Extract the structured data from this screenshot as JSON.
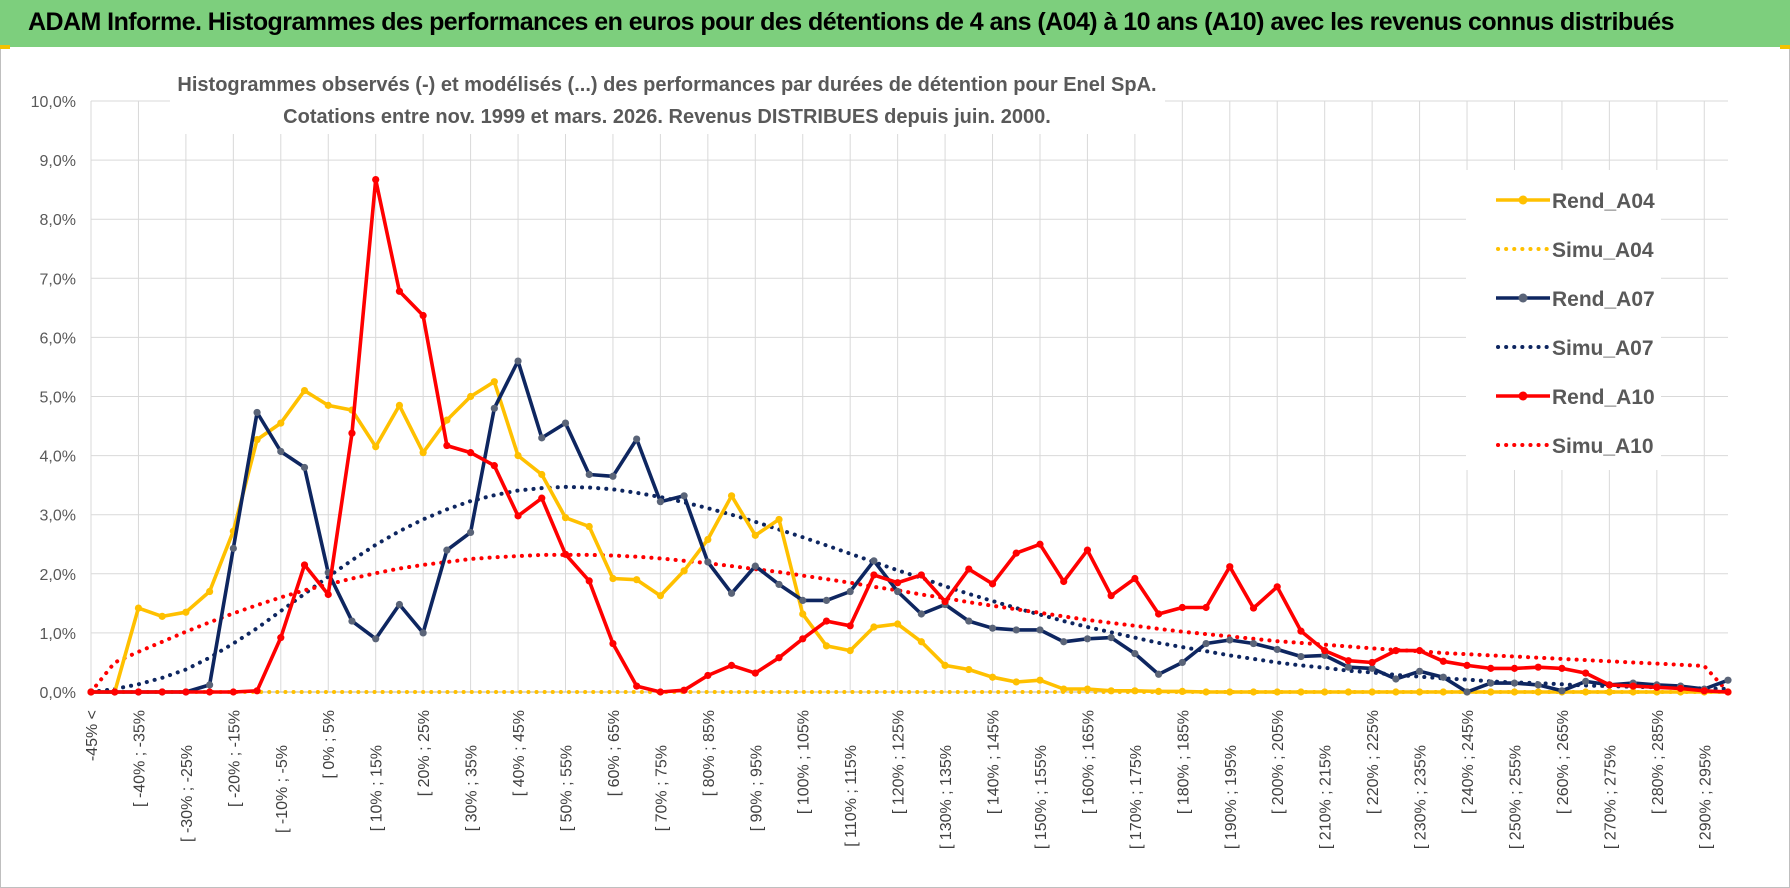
{
  "banner": {
    "title": "ADAM Informe. Histogrammes des performances en euros pour des détentions de 4 ans (A04) à 10 ans (A10) avec les revenus connus distribués"
  },
  "colors": {
    "banner_bg": "#7dcf7d",
    "A04": "#ffc000",
    "A07": "#0e2660",
    "A10": "#ff0000"
  },
  "chart_data": {
    "type": "line",
    "title": "Histogrammes observés (-) et modélisés (...) des performances par durées de détention pour Enel SpA.",
    "subtitle": "Cotations entre nov. 1999 et mars. 2026. Revenus DISTRIBUES depuis juin. 2000.",
    "xlabel": "",
    "ylabel": "",
    "ylim": [
      0,
      10
    ],
    "y_unit": "%",
    "y_ticks": [
      "0,0%",
      "1,0%",
      "2,0%",
      "3,0%",
      "4,0%",
      "5,0%",
      "6,0%",
      "7,0%",
      "8,0%",
      "9,0%",
      "10,0%"
    ],
    "grid": true,
    "legend_position": "right",
    "x_tick_labels": [
      "-45% <",
      "[ -40% ; -35%",
      "[ -30% ; -25%",
      "[ -20% ; -15%",
      "[ -10% ; -5%",
      "[ 0% ; 5%",
      "[ 10% ; 15%",
      "[ 20% ; 25%",
      "[ 30% ; 35%",
      "[ 40% ; 45%",
      "[ 50% ; 55%",
      "[ 60% ; 65%",
      "[ 70% ; 75%",
      "[ 80% ; 85%",
      "[ 90% ; 95%",
      "[ 100% ; 105%",
      "[ 110% ; 115%",
      "[ 120% ; 125%",
      "[ 130% ; 135%",
      "[ 140% ; 145%",
      "[ 150% ; 155%",
      "[ 160% ; 165%",
      "[ 170% ; 175%",
      "[ 180% ; 185%",
      "[ 190% ; 195%",
      "[ 200% ; 205%",
      "[ 210% ; 215%",
      "[ 220% ; 225%",
      "[ 230% ; 235%",
      "[ 240% ; 245%",
      "[ 250% ; 255%",
      "[ 260% ; 265%",
      "[ 270% ; 275%",
      "[ 280% ; 285%",
      "[ 290% ; 295%"
    ],
    "x_count": 70,
    "series": [
      {
        "name": "Rend_A04",
        "style": "solid",
        "color": "#ffc000",
        "values": [
          0.0,
          0.0,
          1.42,
          1.28,
          1.35,
          1.7,
          2.72,
          4.27,
          4.55,
          5.1,
          4.85,
          4.77,
          4.15,
          4.85,
          4.05,
          4.6,
          5.0,
          5.25,
          4.0,
          3.68,
          2.95,
          2.8,
          1.92,
          1.9,
          1.63,
          2.05,
          2.58,
          3.32,
          2.65,
          2.92,
          1.32,
          0.78,
          0.7,
          1.1,
          1.15,
          0.85,
          0.45,
          0.38,
          0.25,
          0.17,
          0.2,
          0.05,
          0.05,
          0.02,
          0.02,
          0.01,
          0.01,
          0,
          0,
          0,
          0,
          0,
          0,
          0,
          0,
          0,
          0,
          0,
          0,
          0,
          0,
          0,
          0,
          0,
          0,
          0,
          0,
          0,
          0,
          0
        ]
      },
      {
        "name": "Simu_A04",
        "style": "dotted",
        "color": "#ffc000",
        "values": [
          0,
          0,
          0,
          0,
          0,
          0,
          0,
          0,
          0,
          0,
          0,
          0,
          0,
          0,
          0,
          0,
          0,
          0,
          0,
          0,
          0,
          0,
          0,
          0,
          0,
          0,
          0,
          0,
          0,
          0,
          0,
          0,
          0,
          0,
          0,
          0,
          0,
          0,
          0,
          0,
          0,
          0,
          0,
          0,
          0,
          0,
          0,
          0,
          0,
          0,
          0,
          0,
          0,
          0,
          0,
          0,
          0,
          0,
          0,
          0,
          0,
          0,
          0,
          0,
          0,
          0,
          0,
          0,
          0,
          0
        ]
      },
      {
        "name": "Rend_A07",
        "style": "solid",
        "color": "#0e2660",
        "values": [
          0.0,
          0.0,
          0.0,
          0.0,
          0.0,
          0.12,
          2.43,
          4.73,
          4.07,
          3.8,
          2.02,
          1.2,
          0.9,
          1.48,
          1.0,
          2.4,
          2.7,
          4.8,
          5.6,
          4.3,
          4.55,
          3.68,
          3.65,
          4.28,
          3.22,
          3.32,
          2.2,
          1.67,
          2.13,
          1.82,
          1.55,
          1.55,
          1.7,
          2.22,
          1.7,
          1.32,
          1.48,
          1.2,
          1.08,
          1.05,
          1.05,
          0.85,
          0.9,
          0.92,
          0.65,
          0.3,
          0.5,
          0.82,
          0.88,
          0.82,
          0.72,
          0.6,
          0.62,
          0.42,
          0.4,
          0.22,
          0.35,
          0.25,
          0.0,
          0.15,
          0.15,
          0.12,
          0.02,
          0.18,
          0.12,
          0.15,
          0.12,
          0.1,
          0.05,
          0.2
        ]
      },
      {
        "name": "Simu_A07",
        "style": "dotted",
        "color": "#0e2660",
        "values": [
          0.0,
          0.05,
          0.13,
          0.24,
          0.38,
          0.58,
          0.82,
          1.08,
          1.37,
          1.66,
          1.95,
          2.23,
          2.49,
          2.72,
          2.92,
          3.09,
          3.23,
          3.33,
          3.41,
          3.45,
          3.47,
          3.46,
          3.43,
          3.37,
          3.3,
          3.21,
          3.11,
          3.0,
          2.88,
          2.75,
          2.62,
          2.48,
          2.34,
          2.2,
          2.06,
          1.93,
          1.79,
          1.66,
          1.54,
          1.42,
          1.31,
          1.2,
          1.1,
          1.01,
          0.92,
          0.83,
          0.76,
          0.69,
          0.62,
          0.56,
          0.5,
          0.45,
          0.41,
          0.36,
          0.33,
          0.29,
          0.26,
          0.23,
          0.21,
          0.18,
          0.16,
          0.15,
          0.13,
          0.11,
          0.1,
          0.09,
          0.08,
          0.07,
          0.06,
          0.05
        ]
      },
      {
        "name": "Rend_A10",
        "style": "solid",
        "color": "#ff0000",
        "values": [
          0.0,
          0.0,
          0.0,
          0.0,
          0.0,
          0.0,
          0.0,
          0.02,
          0.92,
          2.15,
          1.65,
          4.38,
          8.67,
          6.78,
          6.37,
          4.17,
          4.05,
          3.83,
          2.98,
          3.28,
          2.33,
          1.88,
          0.82,
          0.1,
          0.0,
          0.03,
          0.28,
          0.45,
          0.32,
          0.58,
          0.9,
          1.2,
          1.12,
          1.98,
          1.85,
          1.98,
          1.53,
          2.08,
          1.83,
          2.35,
          2.5,
          1.87,
          2.4,
          1.63,
          1.92,
          1.32,
          1.43,
          1.43,
          2.12,
          1.42,
          1.78,
          1.03,
          0.7,
          0.53,
          0.5,
          0.7,
          0.7,
          0.52,
          0.45,
          0.4,
          0.4,
          0.42,
          0.4,
          0.32,
          0.12,
          0.1,
          0.08,
          0.06,
          0.02,
          0.0
        ]
      },
      {
        "name": "Simu_A10",
        "style": "dotted",
        "color": "#ff0000",
        "values": [
          0.0,
          0.5,
          0.68,
          0.85,
          1.02,
          1.18,
          1.33,
          1.47,
          1.6,
          1.72,
          1.82,
          1.92,
          2.01,
          2.09,
          2.15,
          2.2,
          2.25,
          2.28,
          2.3,
          2.32,
          2.32,
          2.32,
          2.31,
          2.29,
          2.26,
          2.22,
          2.18,
          2.13,
          2.08,
          2.03,
          1.97,
          1.91,
          1.85,
          1.78,
          1.72,
          1.65,
          1.59,
          1.52,
          1.46,
          1.4,
          1.34,
          1.28,
          1.22,
          1.17,
          1.12,
          1.07,
          1.02,
          0.98,
          0.94,
          0.9,
          0.86,
          0.83,
          0.8,
          0.77,
          0.74,
          0.71,
          0.69,
          0.66,
          0.64,
          0.62,
          0.6,
          0.58,
          0.56,
          0.54,
          0.52,
          0.5,
          0.48,
          0.46,
          0.44,
          0.0
        ]
      }
    ]
  }
}
